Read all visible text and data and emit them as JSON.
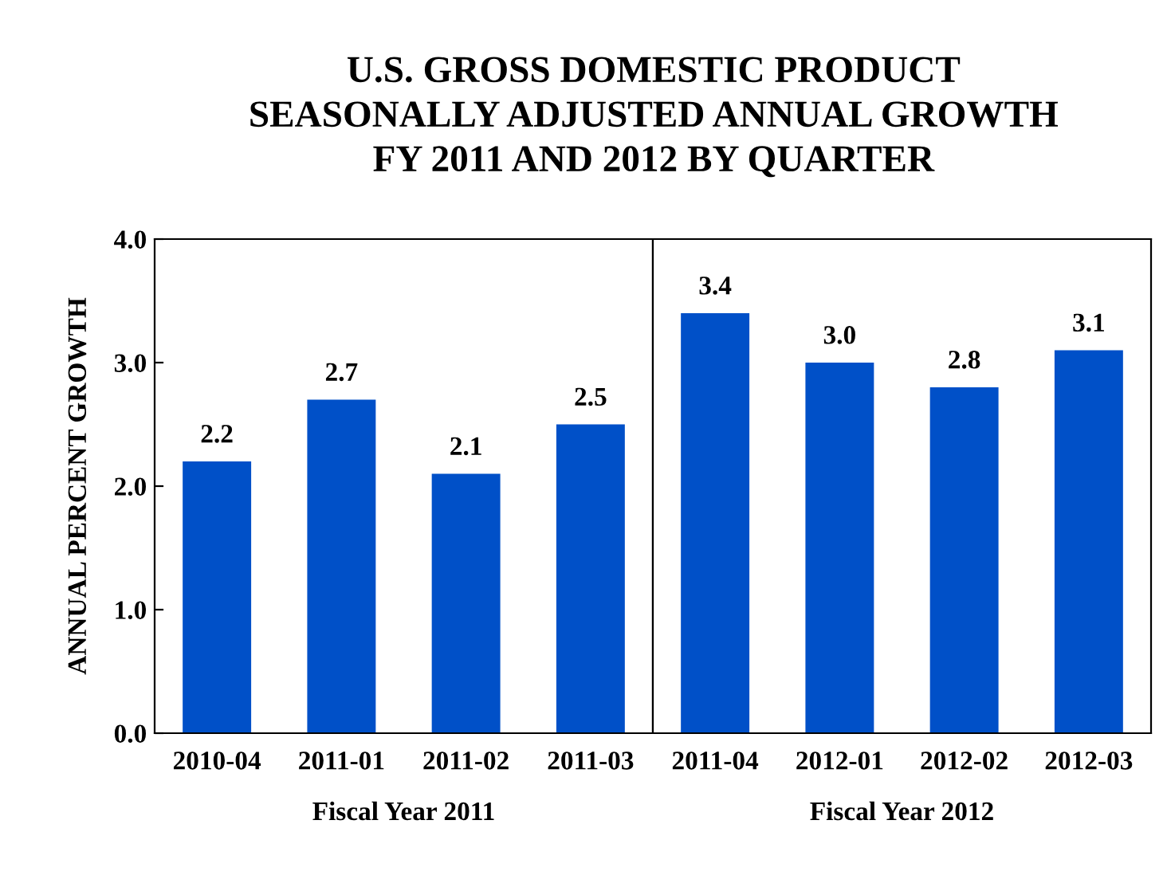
{
  "chart_data": [
    {
      "type": "bar",
      "title": "U.S. GROSS DOMESTIC PRODUCT\nSEASONALLY ADJUSTED ANNUAL GROWTH\nFY 2011 AND 2012 BY QUARTER",
      "ylabel": "ANNUAL PERCENT GROWTH",
      "xlabel": "Fiscal Year 2011",
      "categories": [
        "2010-04",
        "2011-01",
        "2011-02",
        "2011-03"
      ],
      "values": [
        2.2,
        2.7,
        2.1,
        2.5
      ],
      "value_labels": [
        "2.2",
        "2.7",
        "2.1",
        "2.5"
      ],
      "color": "#0050c8",
      "ylim": [
        0,
        4
      ],
      "yticks": [
        {
          "value": 0,
          "label": "0.0"
        },
        {
          "value": 1,
          "label": "1.0"
        },
        {
          "value": 2,
          "label": "2.0"
        },
        {
          "value": 3,
          "label": "3.0"
        },
        {
          "value": 4,
          "label": "4.0"
        }
      ],
      "grid": false,
      "legend": false
    },
    {
      "type": "bar",
      "xlabel": "Fiscal Year 2012",
      "categories": [
        "2011-04",
        "2012-01",
        "2012-02",
        "2012-03"
      ],
      "values": [
        3.4,
        3.0,
        2.8,
        3.1
      ],
      "value_labels": [
        "3.4",
        "3.0",
        "2.8",
        "3.1"
      ],
      "color": "#0050c8",
      "ylim": [
        0,
        4
      ],
      "tick_labels": "x",
      "grid": false,
      "legend": false
    }
  ]
}
